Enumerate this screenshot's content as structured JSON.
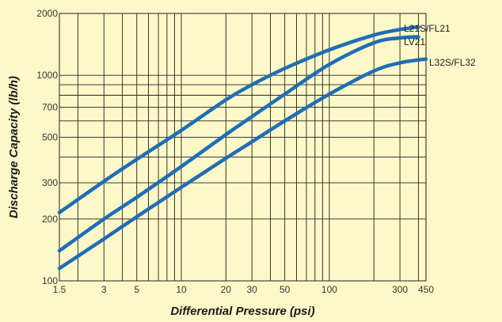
{
  "chart_data": {
    "type": "line",
    "xlabel": "Differential Pressure (psi)",
    "ylabel": "Discharge Capacity (lb/h)",
    "xscale": "log",
    "yscale": "log",
    "xlim": [
      1.5,
      450
    ],
    "ylim": [
      100,
      2000
    ],
    "grid": true,
    "xticks": [
      1.5,
      3,
      5,
      10,
      20,
      30,
      50,
      100,
      300,
      450
    ],
    "xtick_labels": [
      "1.5",
      "3",
      "5",
      "10",
      "20",
      "30",
      "50",
      "100",
      "300",
      "450"
    ],
    "yticks": [
      100,
      200,
      300,
      500,
      700,
      1000,
      2000
    ],
    "ytick_labels": [
      "100",
      "200",
      "300",
      "500",
      "700",
      "1000",
      "2000"
    ],
    "series": [
      {
        "name": "L21S/FL21",
        "x": [
          1.5,
          3,
          5,
          10,
          20,
          30,
          50,
          100,
          200,
          300,
          400
        ],
        "y": [
          215,
          305,
          390,
          540,
          760,
          900,
          1080,
          1330,
          1570,
          1670,
          1720
        ]
      },
      {
        "name": "LV21",
        "x": [
          1.5,
          3,
          5,
          10,
          20,
          30,
          50,
          100,
          200,
          300,
          400
        ],
        "y": [
          140,
          200,
          255,
          360,
          515,
          630,
          810,
          1130,
          1440,
          1520,
          1540
        ]
      },
      {
        "name": "L32S/FL32",
        "x": [
          1.5,
          3,
          5,
          10,
          20,
          30,
          50,
          100,
          200,
          300,
          450
        ],
        "y": [
          115,
          160,
          205,
          285,
          395,
          475,
          600,
          810,
          1050,
          1150,
          1200
        ]
      }
    ],
    "line_color": "#1f6db5",
    "background_color": "#fcf8c8",
    "grid_color": "#222222"
  }
}
